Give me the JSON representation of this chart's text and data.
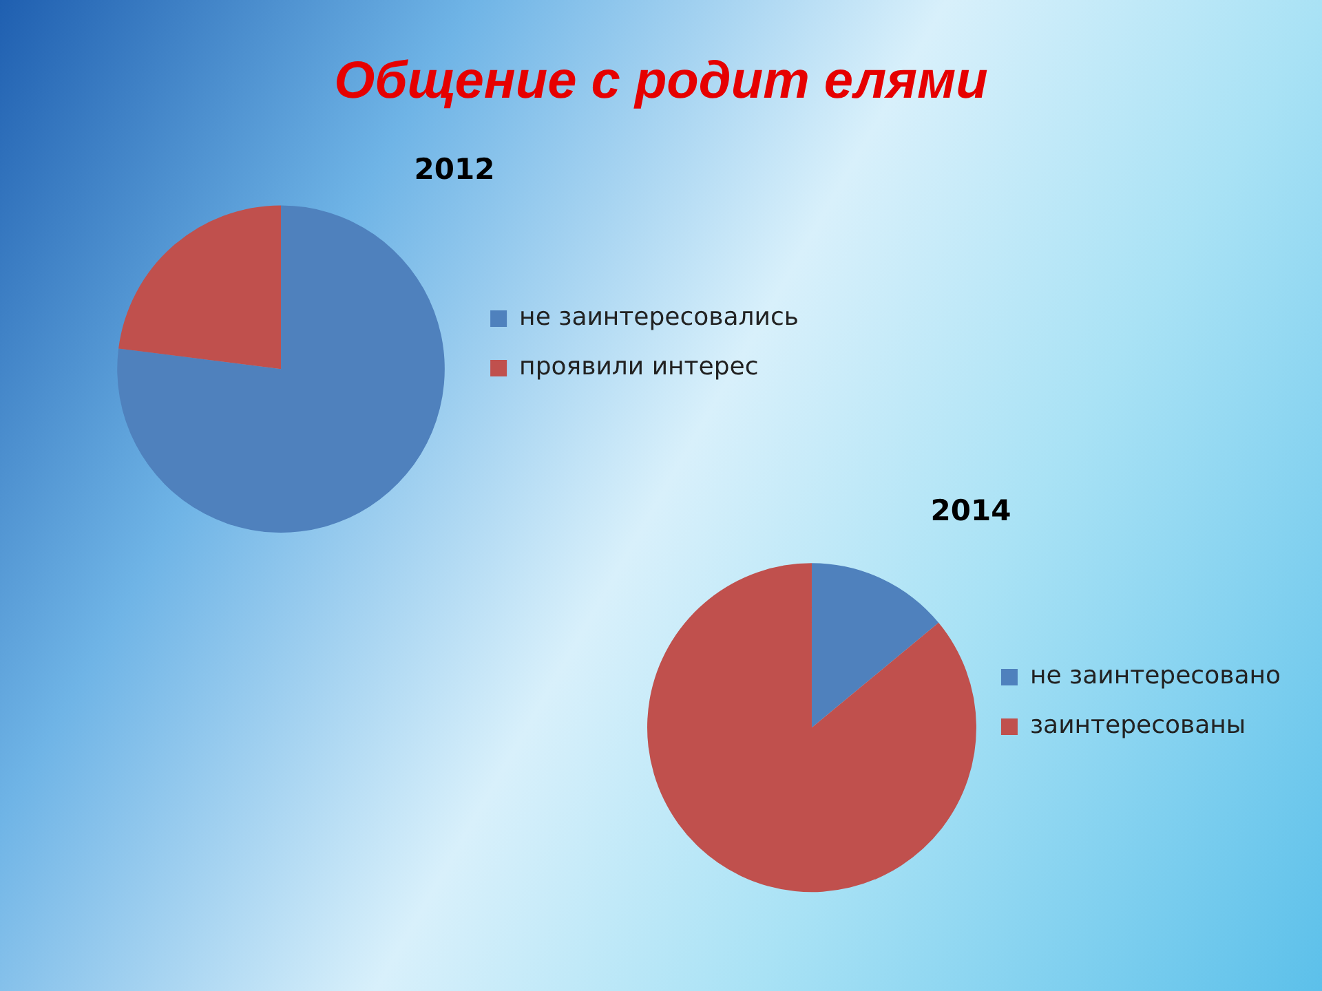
{
  "chart_data": [
    {
      "type": "other",
      "title": "Общение с родит елями"
    },
    {
      "type": "pie",
      "title": "2012",
      "categories": [
        "не заинтересовались",
        "проявили интерес"
      ],
      "values": [
        77,
        23
      ],
      "colors": [
        "#4f81bd",
        "#c0504d"
      ],
      "legend": "right"
    },
    {
      "type": "pie",
      "title": "2014",
      "categories": [
        "не заинтересовано",
        "заинтересованы"
      ],
      "values": [
        14,
        86
      ],
      "colors": [
        "#4f81bd",
        "#c0504d"
      ],
      "legend": "right"
    }
  ]
}
